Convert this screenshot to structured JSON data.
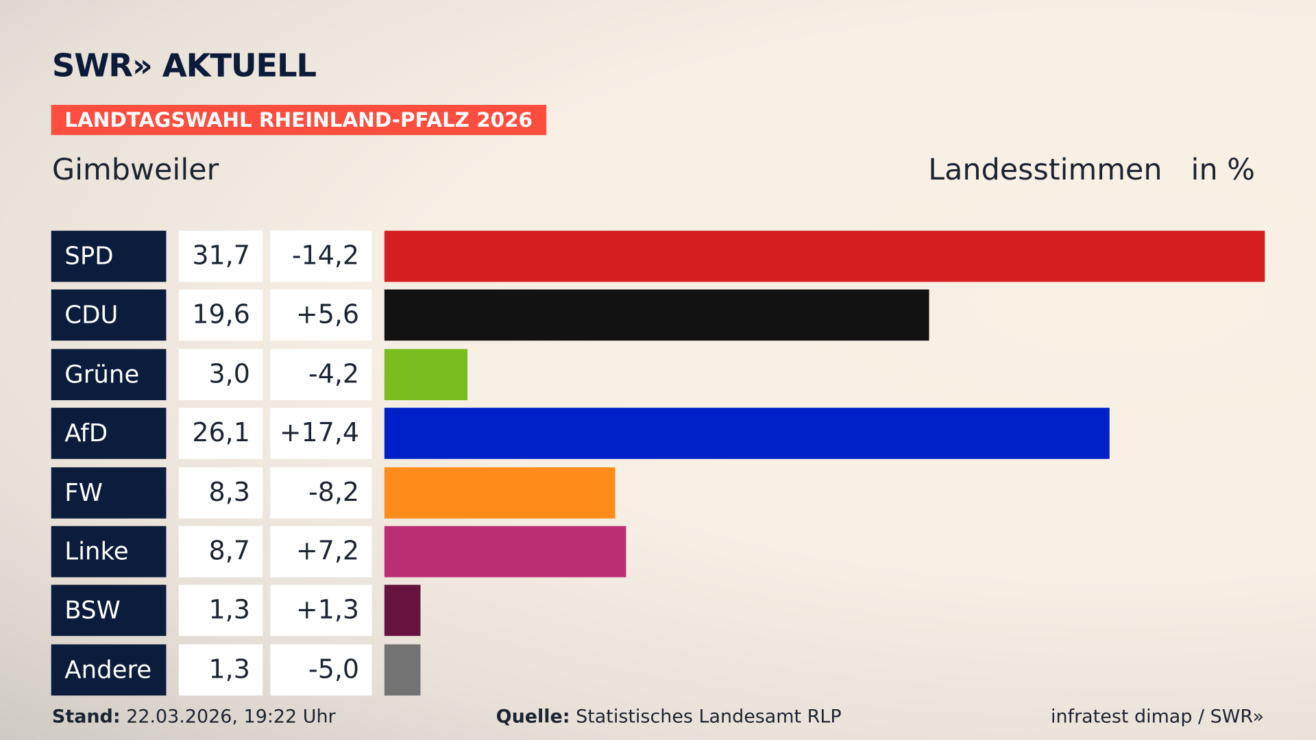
{
  "header": {
    "logo": "SWR» AKTUELL",
    "tag": "LANDTAGSWAHL RHEINLAND-PFALZ 2026",
    "place": "Gimbweiler",
    "vote_type": "Landesstimmen",
    "unit": "in %"
  },
  "chart_data": {
    "type": "bar",
    "categories": [
      "SPD",
      "CDU",
      "Grüne",
      "AfD",
      "FW",
      "Linke",
      "BSW",
      "Andere"
    ],
    "values": [
      31.7,
      19.6,
      3.0,
      26.1,
      8.3,
      8.7,
      1.3,
      1.3
    ],
    "value_labels": [
      "31,7",
      "19,6",
      "3,0",
      "26,1",
      "8,3",
      "8,7",
      "1,3",
      "1,3"
    ],
    "change_labels": [
      "-14,2",
      "+5,6",
      "-4,2",
      "+17,4",
      "-8,2",
      "+7,2",
      "+1,3",
      "-5,0"
    ],
    "changes": [
      -14.2,
      5.6,
      -4.2,
      17.4,
      -8.2,
      7.2,
      1.3,
      -5.0
    ],
    "colors": [
      "#d61f21",
      "#121212",
      "#79bd1f",
      "#0021c8",
      "#ff8c1a",
      "#bb2e74",
      "#66143f",
      "#737373"
    ],
    "orientation": "horizontal",
    "grid": false
  },
  "footer": {
    "stand_label": "Stand:",
    "stand": "22.03.2026, 19:22 Uhr",
    "source_label": "Quelle:",
    "source": "Statistisches Landesamt RLP",
    "credit": "infratest dimap / SWR»"
  }
}
